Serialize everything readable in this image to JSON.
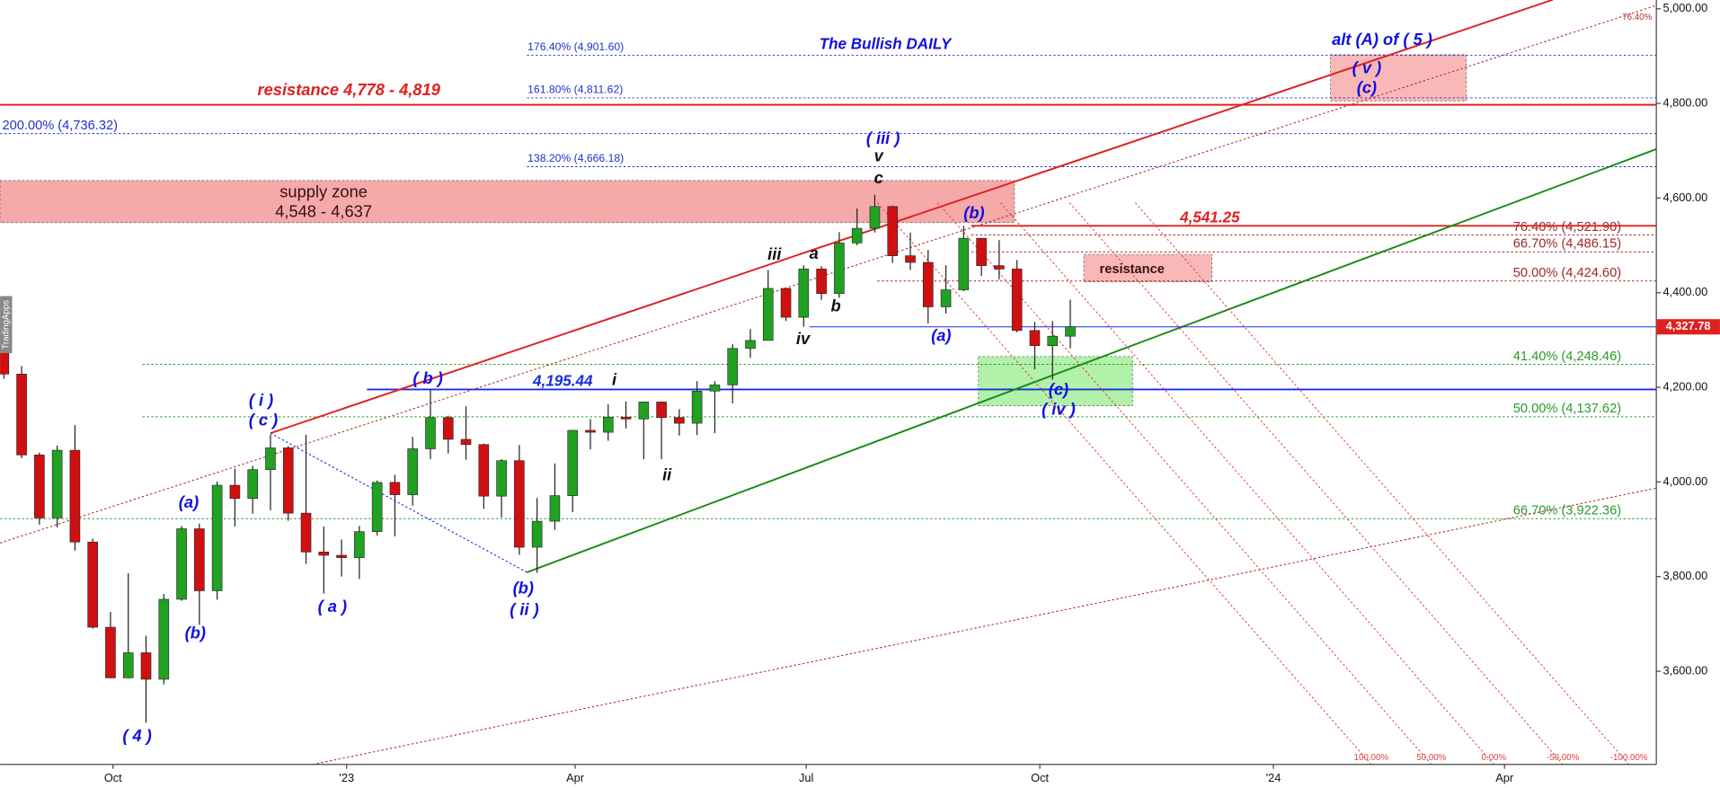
{
  "chart_data": {
    "type": "candlestick",
    "title": "The Bullish DAILY",
    "brand": "TradingApps",
    "xlim": [
      -44.5,
      607.8
    ],
    "ylim": [
      3403,
      5018.5
    ],
    "xticks": [
      {
        "value": 0,
        "label": "Oct"
      },
      {
        "value": 92,
        "label": "'23"
      },
      {
        "value": 182,
        "label": "Apr"
      },
      {
        "value": 273,
        "label": "Jul"
      },
      {
        "value": 365,
        "label": "Oct"
      },
      {
        "value": 457,
        "label": "'24"
      },
      {
        "value": 548,
        "label": "Apr"
      }
    ],
    "yticks": [
      {
        "value": 3600,
        "label": "3,600.00"
      },
      {
        "value": 3800,
        "label": "3,800.00"
      },
      {
        "value": 4000,
        "label": "4,000.00"
      },
      {
        "value": 4200,
        "label": "4,200.00"
      },
      {
        "value": 4400,
        "label": "4,400.00"
      },
      {
        "value": 4600,
        "label": "4,600.00"
      },
      {
        "value": 4800,
        "label": "4,800.00"
      },
      {
        "value": 5000,
        "label": "5,000.00"
      }
    ],
    "up_color": "#22a022",
    "down_color": "#d01010",
    "x": [
      -43,
      -36,
      -29,
      -22,
      -15,
      -8,
      -1,
      6,
      13,
      20,
      27,
      34,
      41,
      48,
      55,
      62,
      69,
      76,
      83,
      90,
      97,
      104,
      111,
      118,
      125,
      132,
      139,
      146,
      153,
      160,
      167,
      174,
      181,
      188,
      195,
      202,
      209,
      216,
      223,
      230,
      237,
      244,
      251,
      258,
      265,
      272,
      279,
      286,
      293,
      300,
      307,
      314,
      321,
      328,
      335,
      342,
      349,
      356,
      363,
      370,
      377
    ],
    "open": [
      4280,
      4228,
      4057,
      3924,
      4067,
      3873,
      3693,
      3586,
      3639,
      3583,
      3752,
      3901,
      3770,
      3993,
      3965,
      4026,
      4072,
      3934,
      3852,
      3845,
      3840,
      3895,
      3999,
      3973,
      4070,
      4136,
      4090,
      4079,
      3970,
      4045,
      3862,
      3917,
      3971,
      4109,
      4105,
      4137,
      4133,
      4169,
      4136,
      4124,
      4192,
      4205,
      4282,
      4299,
      4409,
      4348,
      4450,
      4398,
      4505,
      4536,
      4582,
      4478,
      4464,
      4370,
      4406,
      4515,
      4457,
      4450,
      4320,
      4288,
      4308
    ],
    "high": [
      4325,
      4245,
      4062,
      4077,
      4120,
      3880,
      3725,
      3807,
      3675,
      3763,
      3907,
      3912,
      4001,
      4028,
      4034,
      4100,
      4076,
      4100,
      3906,
      3878,
      3907,
      4003,
      4015,
      4095,
      4195,
      4140,
      4160,
      4081,
      4048,
      4078,
      3966,
      4039,
      4110,
      4133,
      4164,
      4170,
      4170,
      4170,
      4154,
      4213,
      4213,
      4291,
      4323,
      4448,
      4409,
      4458,
      4456,
      4528,
      4578,
      4607,
      4584,
      4527,
      4490,
      4458,
      4541,
      4515,
      4511,
      4469,
      4338,
      4340,
      4385
    ],
    "low": [
      4218,
      4050,
      3910,
      3904,
      3855,
      3690,
      3585,
      3585,
      3491,
      3572,
      3749,
      3698,
      3751,
      3906,
      3933,
      3940,
      3918,
      3827,
      3764,
      3800,
      3795,
      3887,
      3885,
      3950,
      4048,
      4060,
      4047,
      3943,
      3925,
      3846,
      3808,
      3899,
      3936,
      4069,
      4087,
      4113,
      4048,
      4048,
      4098,
      4099,
      4103,
      4166,
      4262,
      4299,
      4340,
      4328,
      4385,
      4389,
      4500,
      4527,
      4463,
      4448,
      4335,
      4356,
      4403,
      4435,
      4428,
      4316,
      4238,
      4216,
      4282
    ],
    "close": [
      4228,
      4057,
      3924,
      4067,
      3873,
      3693,
      3586,
      3639,
      3583,
      3752,
      3901,
      3770,
      3993,
      3965,
      4026,
      4072,
      3934,
      3852,
      3845,
      3840,
      3895,
      3999,
      3973,
      4070,
      4136,
      4090,
      4079,
      3970,
      4045,
      3862,
      3917,
      3971,
      4109,
      4105,
      4137,
      4133,
      4169,
      4136,
      4124,
      4192,
      4205,
      4282,
      4299,
      4409,
      4348,
      4450,
      4398,
      4505,
      4536,
      4582,
      4478,
      4464,
      4370,
      4406,
      4515,
      4457,
      4450,
      4320,
      4288,
      4308,
      4327.78
    ],
    "last_price": {
      "value": 4327.78,
      "label": "4,327.78",
      "color": "#e02020"
    },
    "fib_levels": [
      {
        "label": "176.40% (4,901.60)",
        "value": 4901.6,
        "x0": 163,
        "color": "#2030d0"
      },
      {
        "label": "161.80% (4,811.62)",
        "value": 4811.62,
        "x0": 163,
        "color": "#2030d0"
      },
      {
        "label": "200.00% (4,736.32)",
        "value": 4736.32,
        "x0": -44.5,
        "color": "#2030d0"
      },
      {
        "label": "138.20% (4,666.18)",
        "value": 4666.18,
        "x0": 163,
        "color": "#2030d0"
      },
      {
        "label": "76.40% (4,521.90)",
        "value": 4521.9,
        "x0": 338,
        "color": "#a02828"
      },
      {
        "label": "66.70% (4,486.15)",
        "value": 4486.15,
        "x0": 338,
        "color": "#a02828"
      },
      {
        "label": "50.00% (4,424.60)",
        "value": 4424.6,
        "x0": 301,
        "color": "#a02828"
      },
      {
        "label": "41.40% (4,248.46)",
        "value": 4248.46,
        "x0": 11.6,
        "color": "#2a9a2a"
      },
      {
        "label": "50.00% (4,137.62)",
        "value": 4137.62,
        "x0": 11.6,
        "color": "#2a9a2a"
      },
      {
        "label": "66.70% (3,922.36)",
        "value": 3922.36,
        "x0": -44.5,
        "color": "#2a9a2a"
      }
    ],
    "solid_levels": [
      {
        "value": 4797,
        "x0": -44.5,
        "color": "#e02020"
      },
      {
        "label": "4,541.25",
        "value": 4541.25,
        "x0": 338,
        "color": "#e02020"
      },
      {
        "label": "4,195.44",
        "value": 4195.44,
        "x0": 100,
        "color": "#1a2ee0"
      }
    ],
    "zones": [
      {
        "x": [
          -44.5,
          355
        ],
        "range": [
          4548,
          4637
        ],
        "color": "#f4a0a0"
      },
      {
        "x": [
          382.3,
          432.8
        ],
        "range": [
          4423,
          4481
        ],
        "color": "#f8b0b0"
      },
      {
        "x": [
          340.8,
          401.5
        ],
        "range": [
          4161,
          4265
        ],
        "color": "#a8f0a0"
      },
      {
        "x": [
          479.5,
          533
        ],
        "range": [
          4805,
          4903
        ],
        "color": "#f8b0b0"
      }
    ],
    "trendlines": [
      {
        "points": [
          [
            62,
            4103
          ],
          [
            567,
            5019
          ]
        ],
        "color": "#e02020",
        "dash": false
      },
      {
        "points": [
          [
            163,
            3809
          ],
          [
            633,
            4754
          ]
        ],
        "color": "#1a8a1a",
        "dash": false
      },
      {
        "points": [
          [
            -44.5,
            3871
          ],
          [
            607.8,
            5007
          ]
        ],
        "color": "#b03030",
        "dash": true,
        "label": "76.40%"
      },
      {
        "points": [
          [
            78.6,
            3403
          ],
          [
            607.8,
            3987
          ]
        ],
        "color": "#b03030",
        "dash": true
      },
      {
        "points": [
          [
            62,
            4103
          ],
          [
            163,
            3809
          ]
        ],
        "color": "#2030d0",
        "dash": true
      }
    ],
    "fan": [
      {
        "points": [
          [
            301,
            4590
          ],
          [
            495.5,
            3403
          ]
        ],
        "label": "100.00%"
      },
      {
        "points": [
          [
            324.8,
            4590
          ],
          [
            519.2,
            3403
          ]
        ],
        "label": "50.00%"
      },
      {
        "points": [
          [
            349.5,
            4590
          ],
          [
            543.8,
            3403
          ]
        ],
        "label": "0.00%"
      },
      {
        "points": [
          [
            376.7,
            4590
          ],
          [
            571,
            3403
          ]
        ],
        "label": "-50.00%"
      },
      {
        "points": [
          [
            402.6,
            4590
          ],
          [
            597,
            3403
          ]
        ],
        "label": "-100.00%"
      }
    ],
    "fan_color": "#e04040",
    "annotations": [
      "resistance 4,778 - 4,819",
      "supply zone",
      "4,548 - 4,637",
      "resistance",
      "( 4 )",
      "(b)",
      "(a)",
      "( i )",
      "( c )",
      "( a )",
      "( b )",
      "(b)",
      "( ii )",
      "( iii )",
      "(a)",
      "(b)",
      "(c)",
      "( iv )",
      "alt (A) of ( 5 )",
      "( v )",
      "(c)",
      "i",
      "ii",
      "iii",
      "a",
      "b",
      "iv",
      "v",
      "c"
    ]
  }
}
